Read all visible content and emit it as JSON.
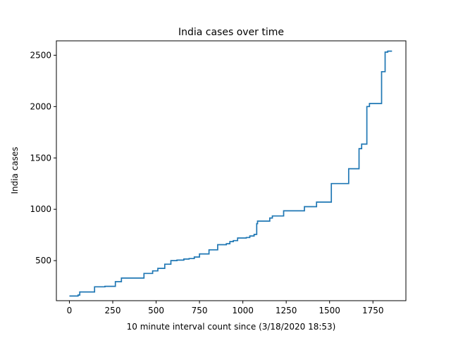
{
  "chart_data": {
    "type": "line",
    "title": "India cases over time",
    "xlabel": "10 minute interval count since (3/18/2020 18:53)",
    "ylabel": "India cases",
    "xlim": [
      -75,
      1940
    ],
    "ylim": [
      110,
      2640
    ],
    "xticks": [
      0,
      250,
      500,
      750,
      1000,
      1250,
      1500,
      1750
    ],
    "yticks": [
      500,
      1000,
      1500,
      2000,
      2500
    ],
    "grid": false,
    "series": [
      {
        "color": "#1f77b4",
        "step": true,
        "x": [
          0,
          50,
          60,
          145,
          205,
          265,
          300,
          430,
          480,
          510,
          550,
          585,
          620,
          660,
          690,
          720,
          750,
          805,
          855,
          905,
          925,
          945,
          970,
          1020,
          1040,
          1065,
          1080,
          1085,
          1155,
          1170,
          1235,
          1355,
          1425,
          1510,
          1610,
          1670,
          1685,
          1715,
          1730,
          1800,
          1820,
          1835,
          1860
        ],
        "y": [
          155,
          165,
          195,
          245,
          250,
          295,
          330,
          375,
          400,
          425,
          465,
          500,
          505,
          515,
          520,
          535,
          565,
          605,
          655,
          665,
          685,
          695,
          720,
          725,
          740,
          755,
          860,
          885,
          915,
          935,
          985,
          1025,
          1070,
          1250,
          1395,
          1590,
          1635,
          2000,
          2030,
          2340,
          2530,
          2540,
          2540
        ]
      }
    ]
  }
}
